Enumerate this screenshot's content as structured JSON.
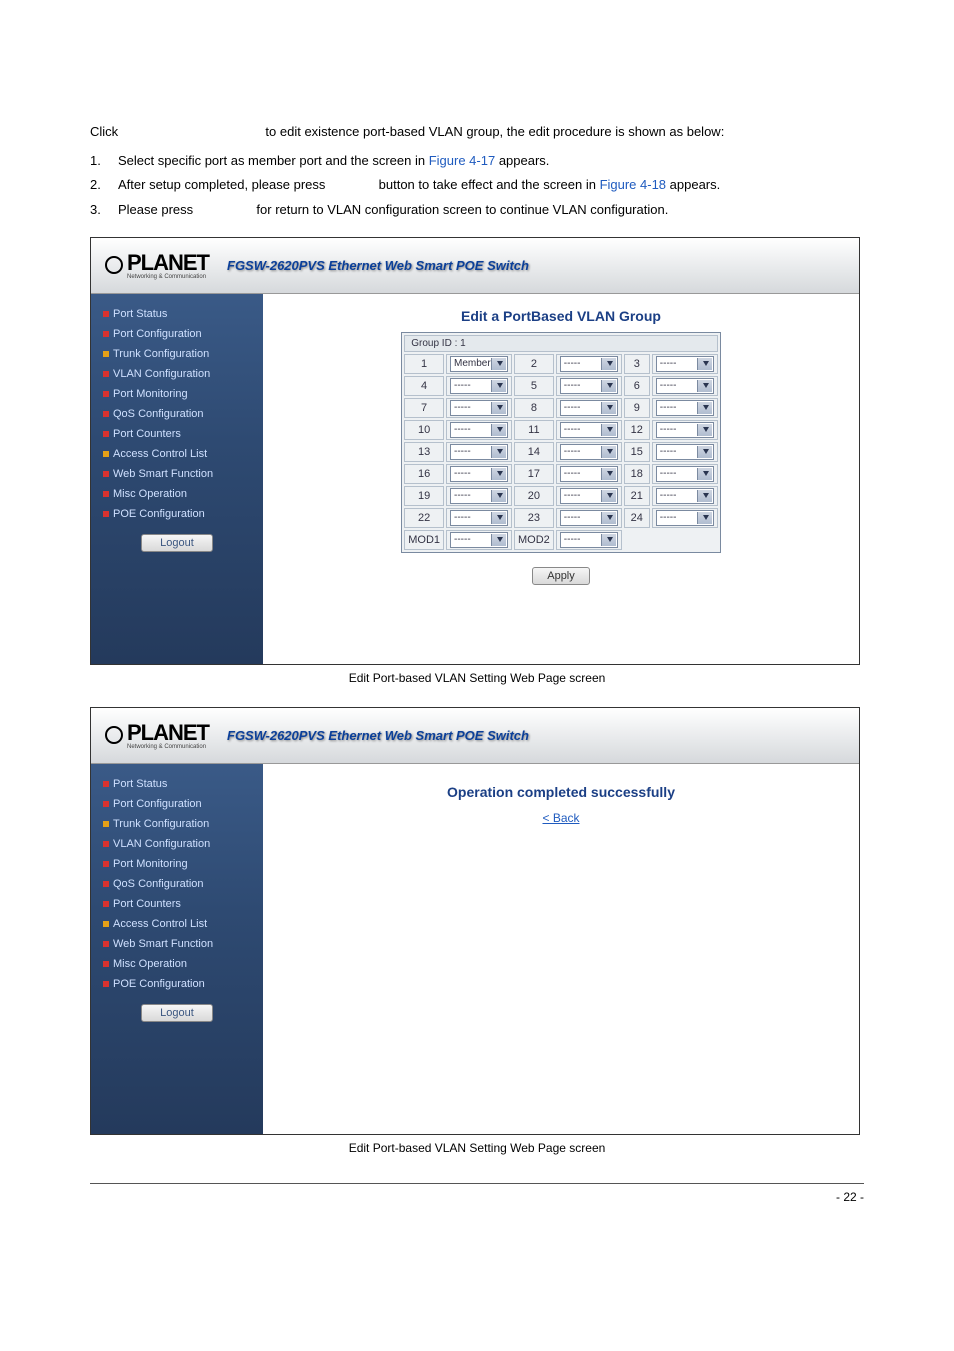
{
  "intro": {
    "line0_a": "Click",
    "line0_b": "to edit existence port-based VLAN group, the edit procedure is shown as below:",
    "item1_a": "Select specific port as member port and the screen in ",
    "item1_link": "Figure 4-17",
    "item1_b": " appears.",
    "item2_a": "After setup completed, please press",
    "item2_b": "button to take effect and the screen in ",
    "item2_link": "Figure 4-18",
    "item2_c": " appears.",
    "item3_a": "Please press",
    "item3_b": "for return to VLAN configuration screen to continue VLAN configuration."
  },
  "header": {
    "brand": "PLANET",
    "brand_sub": "Networking & Communication",
    "model": "FGSW-2620PVS Ethernet Web Smart POE Switch"
  },
  "sidebar": {
    "items": [
      {
        "label": "Port Status",
        "color": "#d8322f"
      },
      {
        "label": "Port Configuration",
        "color": "#d8322f"
      },
      {
        "label": "Trunk Configuration",
        "color": "#e6a018"
      },
      {
        "label": "VLAN Configuration",
        "color": "#d8322f"
      },
      {
        "label": "Port Monitoring",
        "color": "#d8322f"
      },
      {
        "label": "QoS Configuration",
        "color": "#d8322f"
      },
      {
        "label": "Port Counters",
        "color": "#d8322f"
      },
      {
        "label": "Access Control List",
        "color": "#e6a018"
      },
      {
        "label": "Web Smart Function",
        "color": "#d8322f"
      },
      {
        "label": "Misc Operation",
        "color": "#d8322f"
      },
      {
        "label": "POE Configuration",
        "color": "#d8322f"
      }
    ],
    "logout": "Logout"
  },
  "vlan_panel": {
    "title": "Edit a PortBased VLAN Group",
    "group_label": "Group ID : 1",
    "port1_selected": "Member",
    "dash": "-----",
    "rows": [
      [
        1,
        2,
        3
      ],
      [
        4,
        5,
        6
      ],
      [
        7,
        8,
        9
      ],
      [
        10,
        11,
        12
      ],
      [
        13,
        14,
        15
      ],
      [
        16,
        17,
        18
      ],
      [
        19,
        20,
        21
      ],
      [
        22,
        23,
        24
      ]
    ],
    "mod1": "MOD1",
    "mod2": "MOD2",
    "apply": "Apply"
  },
  "caption1": "Edit Port-based VLAN Setting Web Page screen",
  "success": {
    "title": "Operation completed successfully",
    "back": "< Back"
  },
  "caption2": "Edit Port-based VLAN Setting Web Page screen",
  "footer": {
    "page": "- 22 -"
  },
  "colors": {
    "sidebar_bg_top": "#3a5a87",
    "sidebar_bg_bot": "#243a5c",
    "link": "#1f5bbf",
    "title": "#1b3f85"
  }
}
